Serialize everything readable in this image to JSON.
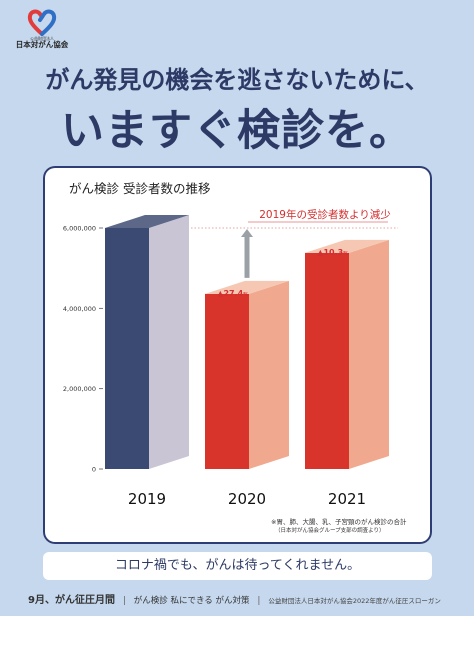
{
  "org": {
    "sub_label": "公益財団法人",
    "name": "日本対がん協会",
    "colors": {
      "ribbon_red": "#e23b3b",
      "ribbon_blue": "#2f6fc6"
    }
  },
  "headline": {
    "line1": "がん発見の機会を逃さないために、",
    "line2": "いますぐ検診を。"
  },
  "chart_data": {
    "type": "bar",
    "title": "がん検診 受診者数の推移",
    "categories": [
      "2019",
      "2020",
      "2021"
    ],
    "values": [
      6000000,
      4360000,
      5380000
    ],
    "ylim": [
      0,
      6000000
    ],
    "y_ticks": [
      0,
      2000000,
      4000000,
      6000000
    ],
    "y_tick_labels": [
      "0",
      "2,000,000",
      "4,000,000",
      "6,000,000"
    ],
    "grid": false,
    "reference_line": {
      "value": 6000000,
      "style": "dotted",
      "color": "#e8a4a0"
    },
    "annotation_banner": "2019年の受診者数より減少",
    "decreases": [
      {
        "category": "2020",
        "label": "▲27.4",
        "unit": "%"
      },
      {
        "category": "2021",
        "label": "▲10.3",
        "unit": "%"
      }
    ],
    "colors": {
      "bar2019_front": "#3b4a73",
      "bar2019_side": "#c9c5d4",
      "bar2019_top": "#5d6888",
      "bar_red_front": "#d8342c",
      "bar_red_side": "#f0a98e",
      "bar_red_top": "#f6c8b4",
      "accent_red": "#d32f2f",
      "arrow_gray": "#9aa0a6"
    },
    "footnote1": "※胃、肺、大腸、乳、子宮頸のがん検診の合計",
    "footnote2": "（日本対がん協会グループ支部の調査より）"
  },
  "message": "コロナ禍でも、がんは待ってくれません。",
  "footer": {
    "campaign": "9月、がん征圧月間",
    "slogan": "がん検診  私にできる  がん対策",
    "credit": "公益財団法人日本対がん協会2022年度がん征圧スローガン"
  }
}
